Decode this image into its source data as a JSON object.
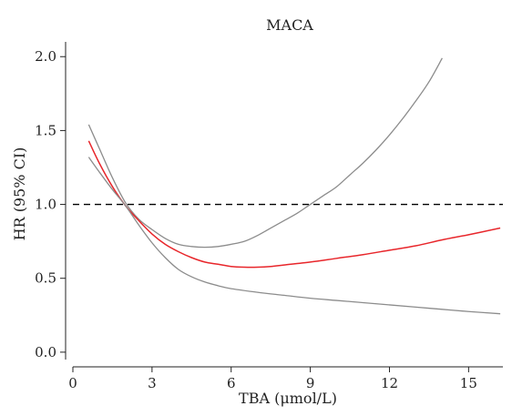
{
  "chart_data": {
    "type": "line",
    "title": "MACA",
    "xlabel": "TBA (μmol/L)",
    "ylabel": "HR (95% CI)",
    "xlim": [
      0,
      16.3
    ],
    "ylim": [
      -0.05,
      2.1
    ],
    "xticks": [
      0,
      3,
      6,
      9,
      12,
      15
    ],
    "yticks": [
      0.0,
      0.5,
      1.0,
      1.5,
      2.0
    ],
    "xtick_labels": [
      "0",
      "3",
      "6",
      "9",
      "12",
      "15"
    ],
    "ytick_labels": [
      "0.0",
      "0.5",
      "1.0",
      "1.5",
      "2.0"
    ],
    "reference_line": {
      "y": 1.0,
      "style": "dashed",
      "color": "#000000"
    },
    "grid": false,
    "series": [
      {
        "role": "upper-ci",
        "color": "#8c8c8c",
        "x": [
          0.6,
          1.0,
          1.5,
          2.0,
          2.5,
          3.0,
          3.5,
          4.0,
          4.5,
          5.0,
          5.5,
          6.0,
          6.5,
          7.0,
          7.5,
          8.0,
          8.5,
          9.0,
          9.5,
          10.0,
          10.5,
          11.0,
          11.5,
          12.0,
          12.5,
          13.0,
          13.5,
          14.0
        ],
        "values": [
          1.54,
          1.38,
          1.18,
          1.01,
          0.9,
          0.83,
          0.77,
          0.73,
          0.715,
          0.71,
          0.715,
          0.73,
          0.75,
          0.79,
          0.84,
          0.89,
          0.94,
          1.0,
          1.06,
          1.12,
          1.2,
          1.28,
          1.37,
          1.47,
          1.58,
          1.7,
          1.83,
          1.99
        ]
      },
      {
        "role": "estimate",
        "color": "#e8262b",
        "x": [
          0.6,
          1.0,
          1.5,
          2.0,
          2.5,
          3.0,
          3.5,
          4.0,
          4.5,
          5.0,
          5.5,
          6.0,
          6.5,
          7.0,
          7.5,
          8.0,
          9.0,
          10.0,
          11.0,
          12.0,
          13.0,
          14.0,
          15.0,
          16.2
        ],
        "values": [
          1.43,
          1.28,
          1.12,
          0.99,
          0.89,
          0.8,
          0.73,
          0.68,
          0.64,
          0.61,
          0.595,
          0.58,
          0.575,
          0.575,
          0.58,
          0.59,
          0.61,
          0.635,
          0.66,
          0.69,
          0.72,
          0.76,
          0.795,
          0.84
        ]
      },
      {
        "role": "lower-ci",
        "color": "#8c8c8c",
        "x": [
          0.6,
          1.0,
          1.5,
          2.0,
          2.5,
          3.0,
          3.5,
          4.0,
          4.5,
          5.0,
          5.5,
          6.0,
          7.0,
          8.0,
          9.0,
          10.0,
          11.0,
          12.0,
          13.0,
          14.0,
          15.0,
          16.2
        ],
        "values": [
          1.32,
          1.22,
          1.1,
          0.99,
          0.86,
          0.74,
          0.64,
          0.56,
          0.51,
          0.475,
          0.45,
          0.43,
          0.405,
          0.385,
          0.365,
          0.35,
          0.335,
          0.32,
          0.305,
          0.29,
          0.275,
          0.26
        ]
      }
    ]
  }
}
